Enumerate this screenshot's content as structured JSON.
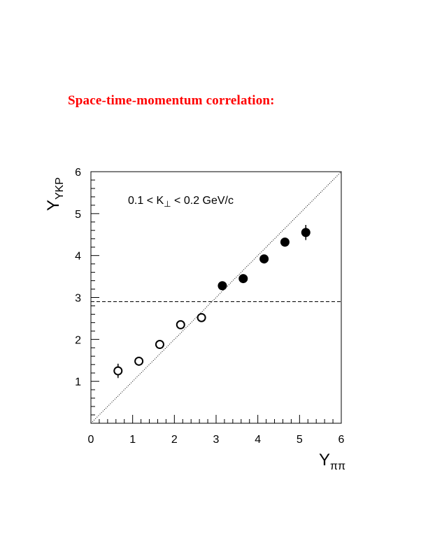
{
  "page": {
    "heading": "Space-time-momentum correlation:",
    "heading_color": "#ff0000"
  },
  "chart_data": {
    "type": "scatter",
    "title": "",
    "xlabel": {
      "main": "Y",
      "sub": "ππ"
    },
    "ylabel": {
      "main": "Y",
      "sub": "YKP"
    },
    "xlim": [
      0,
      6
    ],
    "ylim": [
      0,
      6
    ],
    "x_ticks": [
      "0",
      "1",
      "2",
      "3",
      "4",
      "5",
      "6"
    ],
    "y_ticks": [
      "1",
      "2",
      "3",
      "4",
      "5",
      "6"
    ],
    "grid": false,
    "annotation": "0.1 < K⊥ < 0.2 GeV/c",
    "reference_lines": [
      {
        "kind": "diagonal",
        "style": "dotted",
        "from": [
          0,
          0
        ],
        "to": [
          6,
          6
        ]
      },
      {
        "kind": "horizontal",
        "style": "dashed",
        "y": 2.9
      }
    ],
    "series": [
      {
        "marker": "open-circle",
        "points": [
          {
            "x": 0.65,
            "y": 1.25,
            "err": 0.17
          },
          {
            "x": 1.15,
            "y": 1.48,
            "err": 0.05
          },
          {
            "x": 1.65,
            "y": 1.88,
            "err": 0.05
          },
          {
            "x": 2.15,
            "y": 2.35,
            "err": 0.05
          },
          {
            "x": 2.65,
            "y": 2.52,
            "err": 0.05
          }
        ]
      },
      {
        "marker": "filled-circle",
        "points": [
          {
            "x": 3.15,
            "y": 3.28,
            "err": 0.05
          },
          {
            "x": 3.65,
            "y": 3.45,
            "err": 0.05
          },
          {
            "x": 4.15,
            "y": 3.92,
            "err": 0.05
          },
          {
            "x": 4.65,
            "y": 4.32,
            "err": 0.05
          },
          {
            "x": 5.15,
            "y": 4.55,
            "err": 0.18
          }
        ]
      }
    ]
  }
}
